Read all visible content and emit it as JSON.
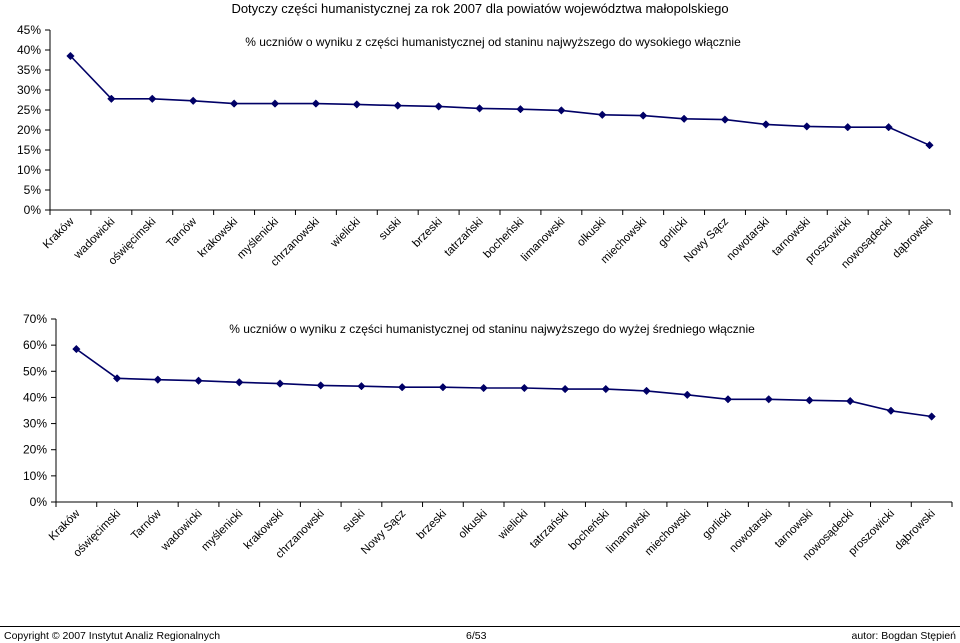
{
  "page_title": "Dotyczy części humanistycznej za rok 2007 dla powiatów województwa małopolskiego",
  "chart_data": [
    {
      "type": "line",
      "title": "% uczniów o wyniku z części humanistycznej od staninu najwyższego do wysokiego włącznie",
      "categories": [
        "Kraków",
        "wadowicki",
        "oświęcimski",
        "Tarnów",
        "krakowski",
        "myślenicki",
        "chrzanowski",
        "wielicki",
        "suski",
        "brzeski",
        "tatrzański",
        "bocheński",
        "limanowski",
        "olkuski",
        "miechowski",
        "gorlicki",
        "Nowy Sącz",
        "nowotarski",
        "tarnowski",
        "proszowicki",
        "nowosądecki",
        "dąbrowski"
      ],
      "values": [
        38.5,
        27.8,
        27.8,
        27.3,
        26.6,
        26.6,
        26.6,
        26.4,
        26.1,
        25.9,
        25.4,
        25.2,
        24.9,
        23.8,
        23.6,
        22.8,
        22.6,
        21.4,
        20.9,
        20.7,
        20.7,
        16.2
      ],
      "ylim": [
        0,
        45
      ],
      "yticks": [
        0,
        5,
        10,
        15,
        20,
        25,
        30,
        35,
        40,
        45
      ],
      "ytick_labels": [
        "0%",
        "5%",
        "10%",
        "15%",
        "20%",
        "25%",
        "30%",
        "35%",
        "40%",
        "45%"
      ],
      "color": "#000066",
      "grid": false
    },
    {
      "type": "line",
      "title": "% uczniów o wyniku z części humanistycznej od staninu najwyższego do wyżej średniego włącznie",
      "categories": [
        "Kraków",
        "oświęcimski",
        "Tarnów",
        "wadowicki",
        "myślenicki",
        "krakowski",
        "chrzanowski",
        "suski",
        "Nowy Sącz",
        "brzeski",
        "olkuski",
        "wielicki",
        "tatrzański",
        "bocheński",
        "limanowski",
        "miechowski",
        "gorlicki",
        "nowotarski",
        "tarnowski",
        "nowosądecki",
        "proszowicki",
        "dąbrowski"
      ],
      "values": [
        58.5,
        47.3,
        46.8,
        46.4,
        45.8,
        45.3,
        44.6,
        44.3,
        43.9,
        43.9,
        43.6,
        43.6,
        43.2,
        43.2,
        42.5,
        41.0,
        39.3,
        39.3,
        38.9,
        38.6,
        34.9,
        32.7
      ],
      "ylim": [
        0,
        70
      ],
      "yticks": [
        0,
        10,
        20,
        30,
        40,
        50,
        60,
        70
      ],
      "ytick_labels": [
        "0%",
        "10%",
        "20%",
        "30%",
        "40%",
        "50%",
        "60%",
        "70%"
      ],
      "color": "#000066",
      "grid": false
    }
  ],
  "footer": {
    "copyright": "Copyright © 2007 Instytut Analiz Regionalnych",
    "page": "6/53",
    "author": "autor: Bogdan Stępień"
  }
}
